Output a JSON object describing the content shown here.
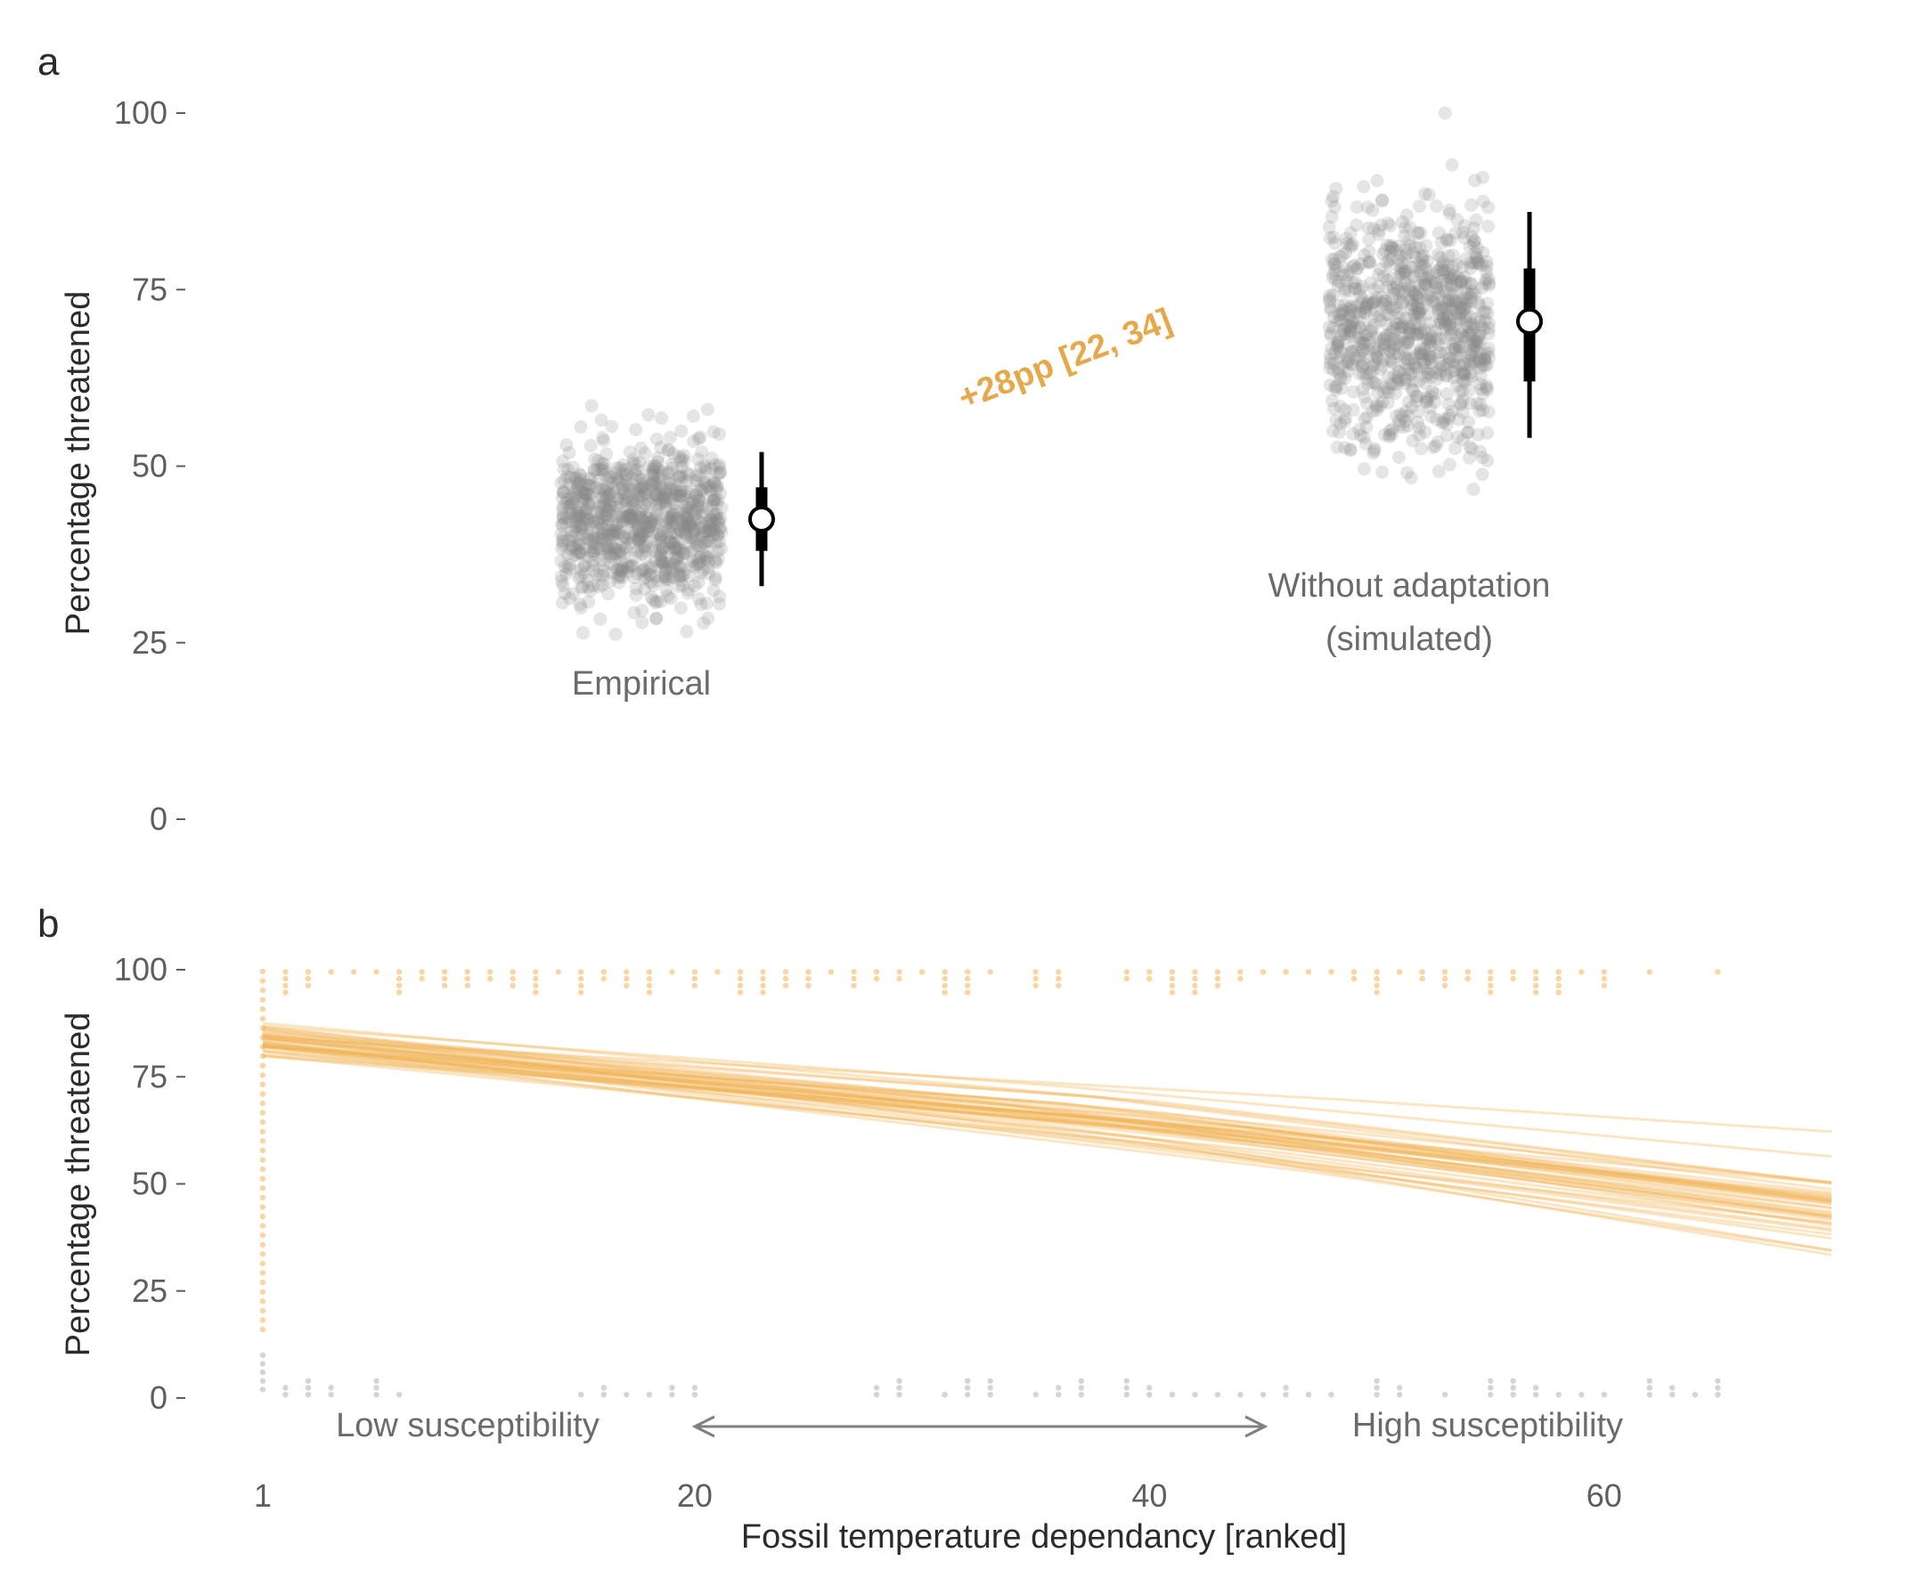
{
  "colors": {
    "accent": "#f0b45a",
    "annotation": "#e5a84a",
    "points_gray": "#8a8a8a",
    "arrow": "#7f7f7f",
    "interval": "#000000"
  },
  "chart_data": [
    {
      "panel": "a",
      "type": "scatter",
      "ylabel": "Percentage threatened",
      "ylim": [
        0,
        100
      ],
      "yticks": [
        0,
        25,
        50,
        75,
        100
      ],
      "grid": false,
      "categories": [
        {
          "label_lines": [
            "Empirical"
          ],
          "draw_count": 900,
          "point_mean": 42,
          "point_sd": 5.5,
          "summary": {
            "median": 42.5,
            "inner": [
              38,
              47
            ],
            "outer": [
              33,
              52
            ]
          }
        },
        {
          "label_lines": [
            "Without adaptation",
            "(simulated)"
          ],
          "draw_count": 900,
          "point_mean": 70,
          "point_sd": 8.5,
          "summary": {
            "median": 70.5,
            "inner": [
              62,
              78
            ],
            "outer": [
              54,
              86
            ]
          }
        }
      ],
      "annotation": "+28pp [22, 34]"
    },
    {
      "panel": "b",
      "type": "line",
      "xlabel": "Fossil temperature dependancy [ranked]",
      "ylabel": "Percentage threatened",
      "xlim": [
        1,
        70
      ],
      "ylim": [
        0,
        100
      ],
      "xticks": [
        1,
        20,
        40,
        60
      ],
      "yticks": [
        0,
        25,
        50,
        75,
        100
      ],
      "grid": false,
      "posterior_lines": {
        "count": 40,
        "x_range": [
          1,
          70
        ],
        "start_y": {
          "mean": 83,
          "spread": 4.5
        },
        "end_y": {
          "mean": 45,
          "spread": 9
        }
      },
      "observed_top_x": [
        1,
        2,
        3,
        4,
        5,
        6,
        7,
        8,
        9,
        10,
        11,
        12,
        13,
        14,
        15,
        16,
        17,
        18,
        19,
        20,
        21,
        22,
        23,
        24,
        25,
        26,
        27,
        28,
        29,
        30,
        31,
        32,
        33,
        35,
        36,
        39,
        40,
        41,
        42,
        43,
        44,
        45,
        46,
        47,
        48,
        49,
        50,
        51,
        52,
        53,
        54,
        55,
        56,
        57,
        58,
        59,
        60,
        62,
        65
      ],
      "observed_bottom_x": [
        1,
        2,
        3,
        4,
        6,
        7,
        15,
        16,
        17,
        18,
        19,
        20,
        28,
        29,
        31,
        32,
        33,
        35,
        36,
        37,
        39,
        40,
        41,
        42,
        43,
        44,
        45,
        46,
        47,
        48,
        50,
        51,
        53,
        55,
        56,
        57,
        58,
        59,
        60,
        62,
        63,
        64,
        65
      ],
      "arrow_left_label": "Low susceptibility",
      "arrow_right_label": "High susceptibility"
    }
  ]
}
